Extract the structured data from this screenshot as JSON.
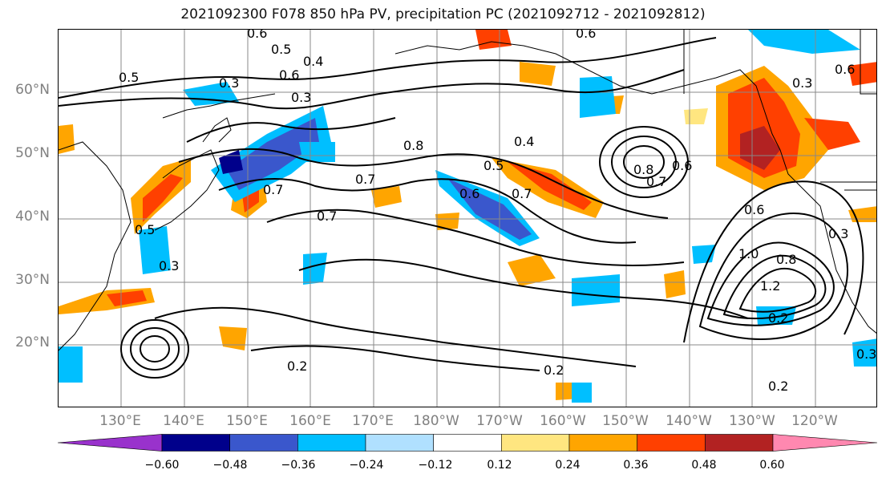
{
  "title": "2021092300 F078 850 hPa PV, precipitation PC (2021092712 - 2021092812)",
  "lat_labels": [
    "60°N",
    "50°N",
    "40°N",
    "30°N",
    "20°N"
  ],
  "lon_labels": [
    "130°E",
    "140°E",
    "150°E",
    "160°E",
    "170°E",
    "180°W",
    "170°W",
    "160°W",
    "150°W",
    "140°W",
    "130°W",
    "120°W"
  ],
  "contour_labels": [
    "0.6",
    "0.5",
    "0.4",
    "0.3",
    "0.6",
    "0.3",
    "0.5",
    "0.7",
    "0.8",
    "0.4",
    "0.5",
    "0.6",
    "0.7",
    "0.7",
    "0.7",
    "0.6",
    "0.5",
    "0.3",
    "0.2",
    "0.2",
    "1.0",
    "1.2",
    "0.8",
    "0.6",
    "0.3",
    "0.2",
    "0.8",
    "0.7",
    "0.6",
    "0.2",
    "0.3",
    "0.6",
    "0.3"
  ],
  "colorbar": {
    "ticks": [
      "−0.60",
      "−0.48",
      "−0.36",
      "−0.24",
      "−0.12",
      "0.12",
      "0.24",
      "0.36",
      "0.48",
      "0.60"
    ],
    "colors": [
      "#9932cc",
      "#00008b",
      "#3a57cc",
      "#00bfff",
      "#b0e0ff",
      "#ffffff",
      "#ffe680",
      "#ffa500",
      "#ff4000",
      "#b22222",
      "#ff88b0"
    ]
  }
}
